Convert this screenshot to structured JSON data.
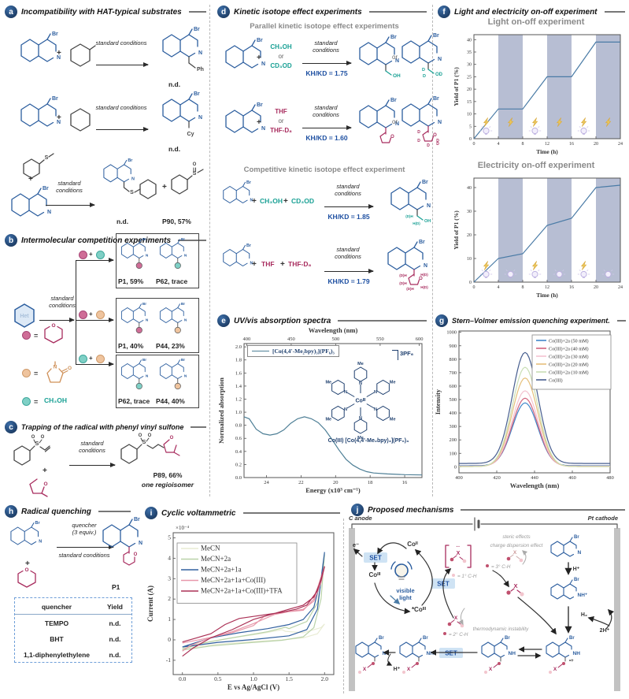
{
  "chem": {
    "plus": "+",
    "or": "or",
    "eq": "=",
    "std": "standard conditions",
    "br": "Br",
    "n": "N",
    "nh": "NH",
    "nh_plus": "NH⁺",
    "radcat": "•+",
    "o": "O",
    "s": "S",
    "me": "Me",
    "d": "D",
    "oh": "OH",
    "ph": "Ph",
    "cy": "Cy",
    "x": "X",
    "co_center": "Coᴵᴵᴵ",
    "ch3oh": "CH₃OH",
    "cd3od": "CD₃OD",
    "thf": "THF",
    "thf_d8": "THF-D₈",
    "dh": "(D)H",
    "hd": "H(D)"
  },
  "strings": {
    "nd": "n.d.",
    "p90": "P90, 57%"
  },
  "panels": {
    "a": {
      "letter": "a",
      "title": "Incompatibility with HAT-typical substrates"
    },
    "b": {
      "letter": "b",
      "title": "Intermolecular competition experiments",
      "het": "Het",
      "boxes": [
        {
          "l": "P1, 59%",
          "r": "P62, trace"
        },
        {
          "l": "P1, 40%",
          "r": "P44, 23%"
        },
        {
          "l": "P62, trace",
          "r": "P44, 40%"
        }
      ]
    },
    "c": {
      "letter": "c",
      "title": "Trapping of the radical with phenyl vinyl sulfone",
      "result": "P89, 66%",
      "note": "one regioisomer"
    },
    "d": {
      "letter": "d",
      "title": "Kinetic isotope effect experiments",
      "parallel": "Parallel kinetic isotope effect experiments",
      "competitive": "Competitive kinetic isotope effect experiment",
      "kie": [
        "KH/KD = 1.75",
        "KH/KD = 1.60",
        "KH/KD = 1.85",
        "KH/KD = 1.79"
      ]
    },
    "e": {
      "letter": "e",
      "title": "UV/vis absorption spectra"
    },
    "f": {
      "letter": "f",
      "title": "Light and electricity on-off experiment"
    },
    "g": {
      "letter": "g",
      "title": "Stern–Volmer emission quenching experiment."
    },
    "h": {
      "letter": "h",
      "title": "Radical quenching",
      "quencher": "quencher",
      "equiv": "(3 equiv.)",
      "product": "P1",
      "table": {
        "headers": [
          "quencher",
          "Yield"
        ],
        "rows": [
          [
            "TEMPO",
            "n.d."
          ],
          [
            "BHT",
            "n.d."
          ],
          [
            "1,1-diphenylethylene",
            "n.d."
          ]
        ]
      }
    },
    "i": {
      "letter": "i",
      "title": "Cyclic voltammetric"
    },
    "j": {
      "letter": "j",
      "title": "Proposed mechanisms",
      "anode": "C anode",
      "cathode": "Pt cathode",
      "set": "SET",
      "e_minus": "e⁻",
      "co2": "Coᴵᴵ",
      "co3": "Coᴵᴵᴵ",
      "co3_ex": "*Coᴵᴵᴵ",
      "light1": "visible",
      "light2": "light",
      "ch1": "= 1° C-H",
      "ch2": "= 2° C-H",
      "ch3": "= 3° C-H",
      "steric": "steric effects",
      "charge": "charge dispersion effect",
      "thermo": "thermodynamic instability",
      "hp": "H⁺",
      "h2": "H₂",
      "hp2": "2H⁺"
    }
  },
  "chart_data": [
    {
      "id": "uvvis-spectrum",
      "type": "line",
      "title": "UV/vis absorption spectra",
      "xlabel_top": "Wavelength (nm)",
      "xticks_top": [
        400,
        450,
        500,
        550,
        600
      ],
      "xlabel": "Energy (x10³ cm⁻¹)",
      "xticks": [
        24,
        22,
        20,
        18,
        16
      ],
      "xlim": [
        25.3,
        15
      ],
      "ylabel": "Normalized absorption",
      "yticks": [
        0.0,
        0.2,
        0.4,
        0.6,
        0.8,
        1.0,
        1.2,
        1.4,
        1.6,
        1.8,
        2.0
      ],
      "ylim": [
        0,
        2.05
      ],
      "series": [
        {
          "name": "[Co(4,4'-Me₂bpy)₃](PF₆)₃",
          "color": "#4e7f96",
          "points": [
            [
              25.3,
              0.93
            ],
            [
              25,
              0.9
            ],
            [
              24.6,
              0.74
            ],
            [
              24.2,
              0.67
            ],
            [
              23.8,
              0.65
            ],
            [
              23.4,
              0.67
            ],
            [
              23,
              0.73
            ],
            [
              22.6,
              0.83
            ],
            [
              22.2,
              0.9
            ],
            [
              21.8,
              0.93
            ],
            [
              21.4,
              0.9
            ],
            [
              21,
              0.84
            ],
            [
              20.6,
              0.73
            ],
            [
              20.2,
              0.58
            ],
            [
              19.8,
              0.42
            ],
            [
              19.4,
              0.28
            ],
            [
              19,
              0.19
            ],
            [
              18.6,
              0.13
            ],
            [
              18.2,
              0.09
            ],
            [
              17.8,
              0.07
            ],
            [
              17,
              0.055
            ],
            [
              16,
              0.045
            ],
            [
              15,
              0.04
            ]
          ]
        }
      ],
      "annotations": {
        "caption": "Co(III) [Co(4,4'-Me₂bpy)₃](PF₆)₃",
        "counterion": "3PF₆"
      }
    },
    {
      "id": "light-on-off",
      "type": "line",
      "title": "Light on-off experiment",
      "xlabel": "Time (h)",
      "ylabel": "Yield of P1 (%)",
      "xlim": [
        0,
        24
      ],
      "ylim": [
        0,
        42
      ],
      "xticks": [
        0,
        4,
        8,
        12,
        16,
        20,
        24
      ],
      "yticks": [
        0,
        5,
        10,
        15,
        20,
        25,
        30,
        35,
        40
      ],
      "bands": [
        [
          4,
          8
        ],
        [
          12,
          16
        ],
        [
          20,
          24
        ]
      ],
      "series": [
        {
          "name": "Yield of P1",
          "color": "#4a7ba6",
          "points": [
            [
              0,
              0
            ],
            [
              4,
              12
            ],
            [
              8,
              12
            ],
            [
              12,
              25
            ],
            [
              16,
              25
            ],
            [
              20,
              39
            ],
            [
              24,
              39
            ]
          ]
        }
      ],
      "icons": {
        "lightning": [
          2,
          6,
          10,
          14,
          18,
          22
        ],
        "bulb": [
          2,
          10,
          18
        ]
      }
    },
    {
      "id": "electricity-on-off",
      "type": "line",
      "title": "Electricity on-off experiment",
      "xlabel": "Time (h)",
      "ylabel": "Yield of P1 (%)",
      "xlim": [
        0,
        24
      ],
      "ylim": [
        0,
        44
      ],
      "xticks": [
        0,
        4,
        8,
        12,
        16,
        20,
        24
      ],
      "yticks": [
        0,
        10,
        20,
        30,
        40
      ],
      "bands": [
        [
          4,
          8
        ],
        [
          12,
          16
        ],
        [
          20,
          24
        ]
      ],
      "series": [
        {
          "name": "Yield of P1",
          "color": "#4a7ba6",
          "points": [
            [
              0,
              0
            ],
            [
              4,
              10
            ],
            [
              8,
              12
            ],
            [
              12,
              24
            ],
            [
              16,
              27
            ],
            [
              20,
              40
            ],
            [
              24,
              41
            ]
          ]
        }
      ],
      "icons": {
        "lightning": [
          2,
          10,
          18
        ],
        "bulb": [
          2,
          6,
          10,
          14,
          18,
          22
        ]
      }
    },
    {
      "id": "stern-volmer",
      "type": "line",
      "title": "Stern–Volmer emission quenching experiment.",
      "xlabel": "Wavelength (nm)",
      "ylabel": "Intensity",
      "xlim": [
        400,
        480
      ],
      "ylim": [
        -45,
        1010
      ],
      "xticks": [
        400,
        420,
        440,
        460,
        480
      ],
      "yticks": [
        0,
        100,
        200,
        300,
        400,
        500,
        600,
        700,
        800,
        900,
        1000
      ],
      "center": 435,
      "sigma": 6.8,
      "series": [
        {
          "name": "Co(III)+2a (50 mM)",
          "color": "#3f86c9",
          "peak": 475,
          "base": 8
        },
        {
          "name": "Co(III)+2a (40 mM)",
          "color": "#d2647e",
          "peak": 510,
          "base": 5
        },
        {
          "name": "Co(III)+2a (30 mM)",
          "color": "#f3c3d0",
          "peak": 565,
          "base": 3
        },
        {
          "name": "Co(III)+2a (20 mM)",
          "color": "#e6c07c",
          "peak": 660,
          "base": 2
        },
        {
          "name": "Co(III)+2a (10 mM)",
          "color": "#c9deb4",
          "peak": 740,
          "base": 2
        },
        {
          "name": "Co(III)",
          "color": "#475e8f",
          "peak": 850,
          "base": 25
        }
      ]
    },
    {
      "id": "cyclic-voltammetry",
      "type": "line",
      "title": "Cyclic voltammetric",
      "xlabel": "E vs Ag/AgCl (V)",
      "ylabel": "Current (A)",
      "multiplier": "×10⁻⁴",
      "xlim": [
        -0.13,
        2.13
      ],
      "ylim": [
        -1.7,
        5.25
      ],
      "xticks": [
        0.0,
        0.5,
        1.0,
        1.5,
        2.0
      ],
      "yticks": [
        -1,
        0,
        1,
        2,
        3,
        4,
        5
      ],
      "series": [
        {
          "name": "MeCN",
          "color": "#e9ecd4",
          "points": [
            [
              0,
              -0.45
            ],
            [
              0.4,
              -0.25
            ],
            [
              0.9,
              -0.1
            ],
            [
              1.4,
              0
            ],
            [
              1.7,
              0.1
            ],
            [
              1.9,
              0.3
            ],
            [
              2,
              0.78
            ],
            [
              1.95,
              0.6
            ],
            [
              1.7,
              0.35
            ],
            [
              1.45,
              0.42
            ],
            [
              1.4,
              0.5
            ],
            [
              1.1,
              0.3
            ],
            [
              0.6,
              0.05
            ],
            [
              0.2,
              -0.2
            ],
            [
              0,
              -0.4
            ]
          ]
        },
        {
          "name": "MeCN+2a",
          "color": "#b9d2a8",
          "points": [
            [
              0,
              -0.5
            ],
            [
              0.4,
              -0.3
            ],
            [
              0.9,
              -0.15
            ],
            [
              1.4,
              -0.02
            ],
            [
              1.7,
              0.15
            ],
            [
              1.85,
              0.6
            ],
            [
              1.95,
              2
            ],
            [
              2,
              4.2
            ],
            [
              1.97,
              3.2
            ],
            [
              1.9,
              1.8
            ],
            [
              1.75,
              0.9
            ],
            [
              1.5,
              0.55
            ],
            [
              1.45,
              0.62
            ],
            [
              1.2,
              0.4
            ],
            [
              0.7,
              0.1
            ],
            [
              0.3,
              -0.15
            ],
            [
              0,
              -0.45
            ]
          ]
        },
        {
          "name": "MeCN+2a+1a",
          "color": "#31609f",
          "points": [
            [
              0,
              -0.35
            ],
            [
              0.5,
              -0.12
            ],
            [
              1,
              0.02
            ],
            [
              1.5,
              0.2
            ],
            [
              1.75,
              0.5
            ],
            [
              1.9,
              1.5
            ],
            [
              2,
              4.3
            ],
            [
              1.95,
              3
            ],
            [
              1.85,
              1.6
            ],
            [
              1.7,
              1
            ],
            [
              1.5,
              0.75
            ],
            [
              1.2,
              0.55
            ],
            [
              0.8,
              0.35
            ],
            [
              0.4,
              0.1
            ],
            [
              0,
              -0.35
            ]
          ]
        },
        {
          "name": "MeCN+2a+1a+Co(III)",
          "color": "#e898aa",
          "points": [
            [
              0,
              -0.15
            ],
            [
              0.3,
              0.05
            ],
            [
              0.7,
              0.35
            ],
            [
              1,
              0.7
            ],
            [
              1.15,
              1.15
            ],
            [
              1.3,
              1.3
            ],
            [
              1.5,
              1.38
            ],
            [
              1.7,
              1.45
            ],
            [
              1.85,
              2
            ],
            [
              2,
              3.6
            ],
            [
              1.95,
              2.8
            ],
            [
              1.85,
              1.9
            ],
            [
              1.7,
              1.5
            ],
            [
              1.5,
              1.38
            ],
            [
              1.3,
              1.25
            ],
            [
              1,
              0.8
            ],
            [
              0.7,
              0.4
            ],
            [
              0.35,
              0.05
            ],
            [
              0.1,
              -0.3
            ],
            [
              0,
              -0.55
            ]
          ]
        },
        {
          "name": "MeCN+2a+1a+Co(III)+TFA",
          "color": "#ab3156",
          "points": [
            [
              0,
              -0.1
            ],
            [
              0.2,
              0.1
            ],
            [
              0.4,
              0.3
            ],
            [
              0.6,
              0.75
            ],
            [
              0.8,
              1.05
            ],
            [
              1,
              1.15
            ],
            [
              1.2,
              1.25
            ],
            [
              1.4,
              1.35
            ],
            [
              1.6,
              1.5
            ],
            [
              1.75,
              1.7
            ],
            [
              1.9,
              2.4
            ],
            [
              2,
              3.6
            ],
            [
              1.95,
              2.9
            ],
            [
              1.85,
              2.1
            ],
            [
              1.7,
              1.7
            ],
            [
              1.5,
              1.5
            ],
            [
              1.3,
              1.3
            ],
            [
              1,
              1
            ],
            [
              0.7,
              0.5
            ],
            [
              0.4,
              0.1
            ],
            [
              0.15,
              -0.4
            ],
            [
              0,
              -0.8
            ]
          ]
        }
      ]
    }
  ]
}
